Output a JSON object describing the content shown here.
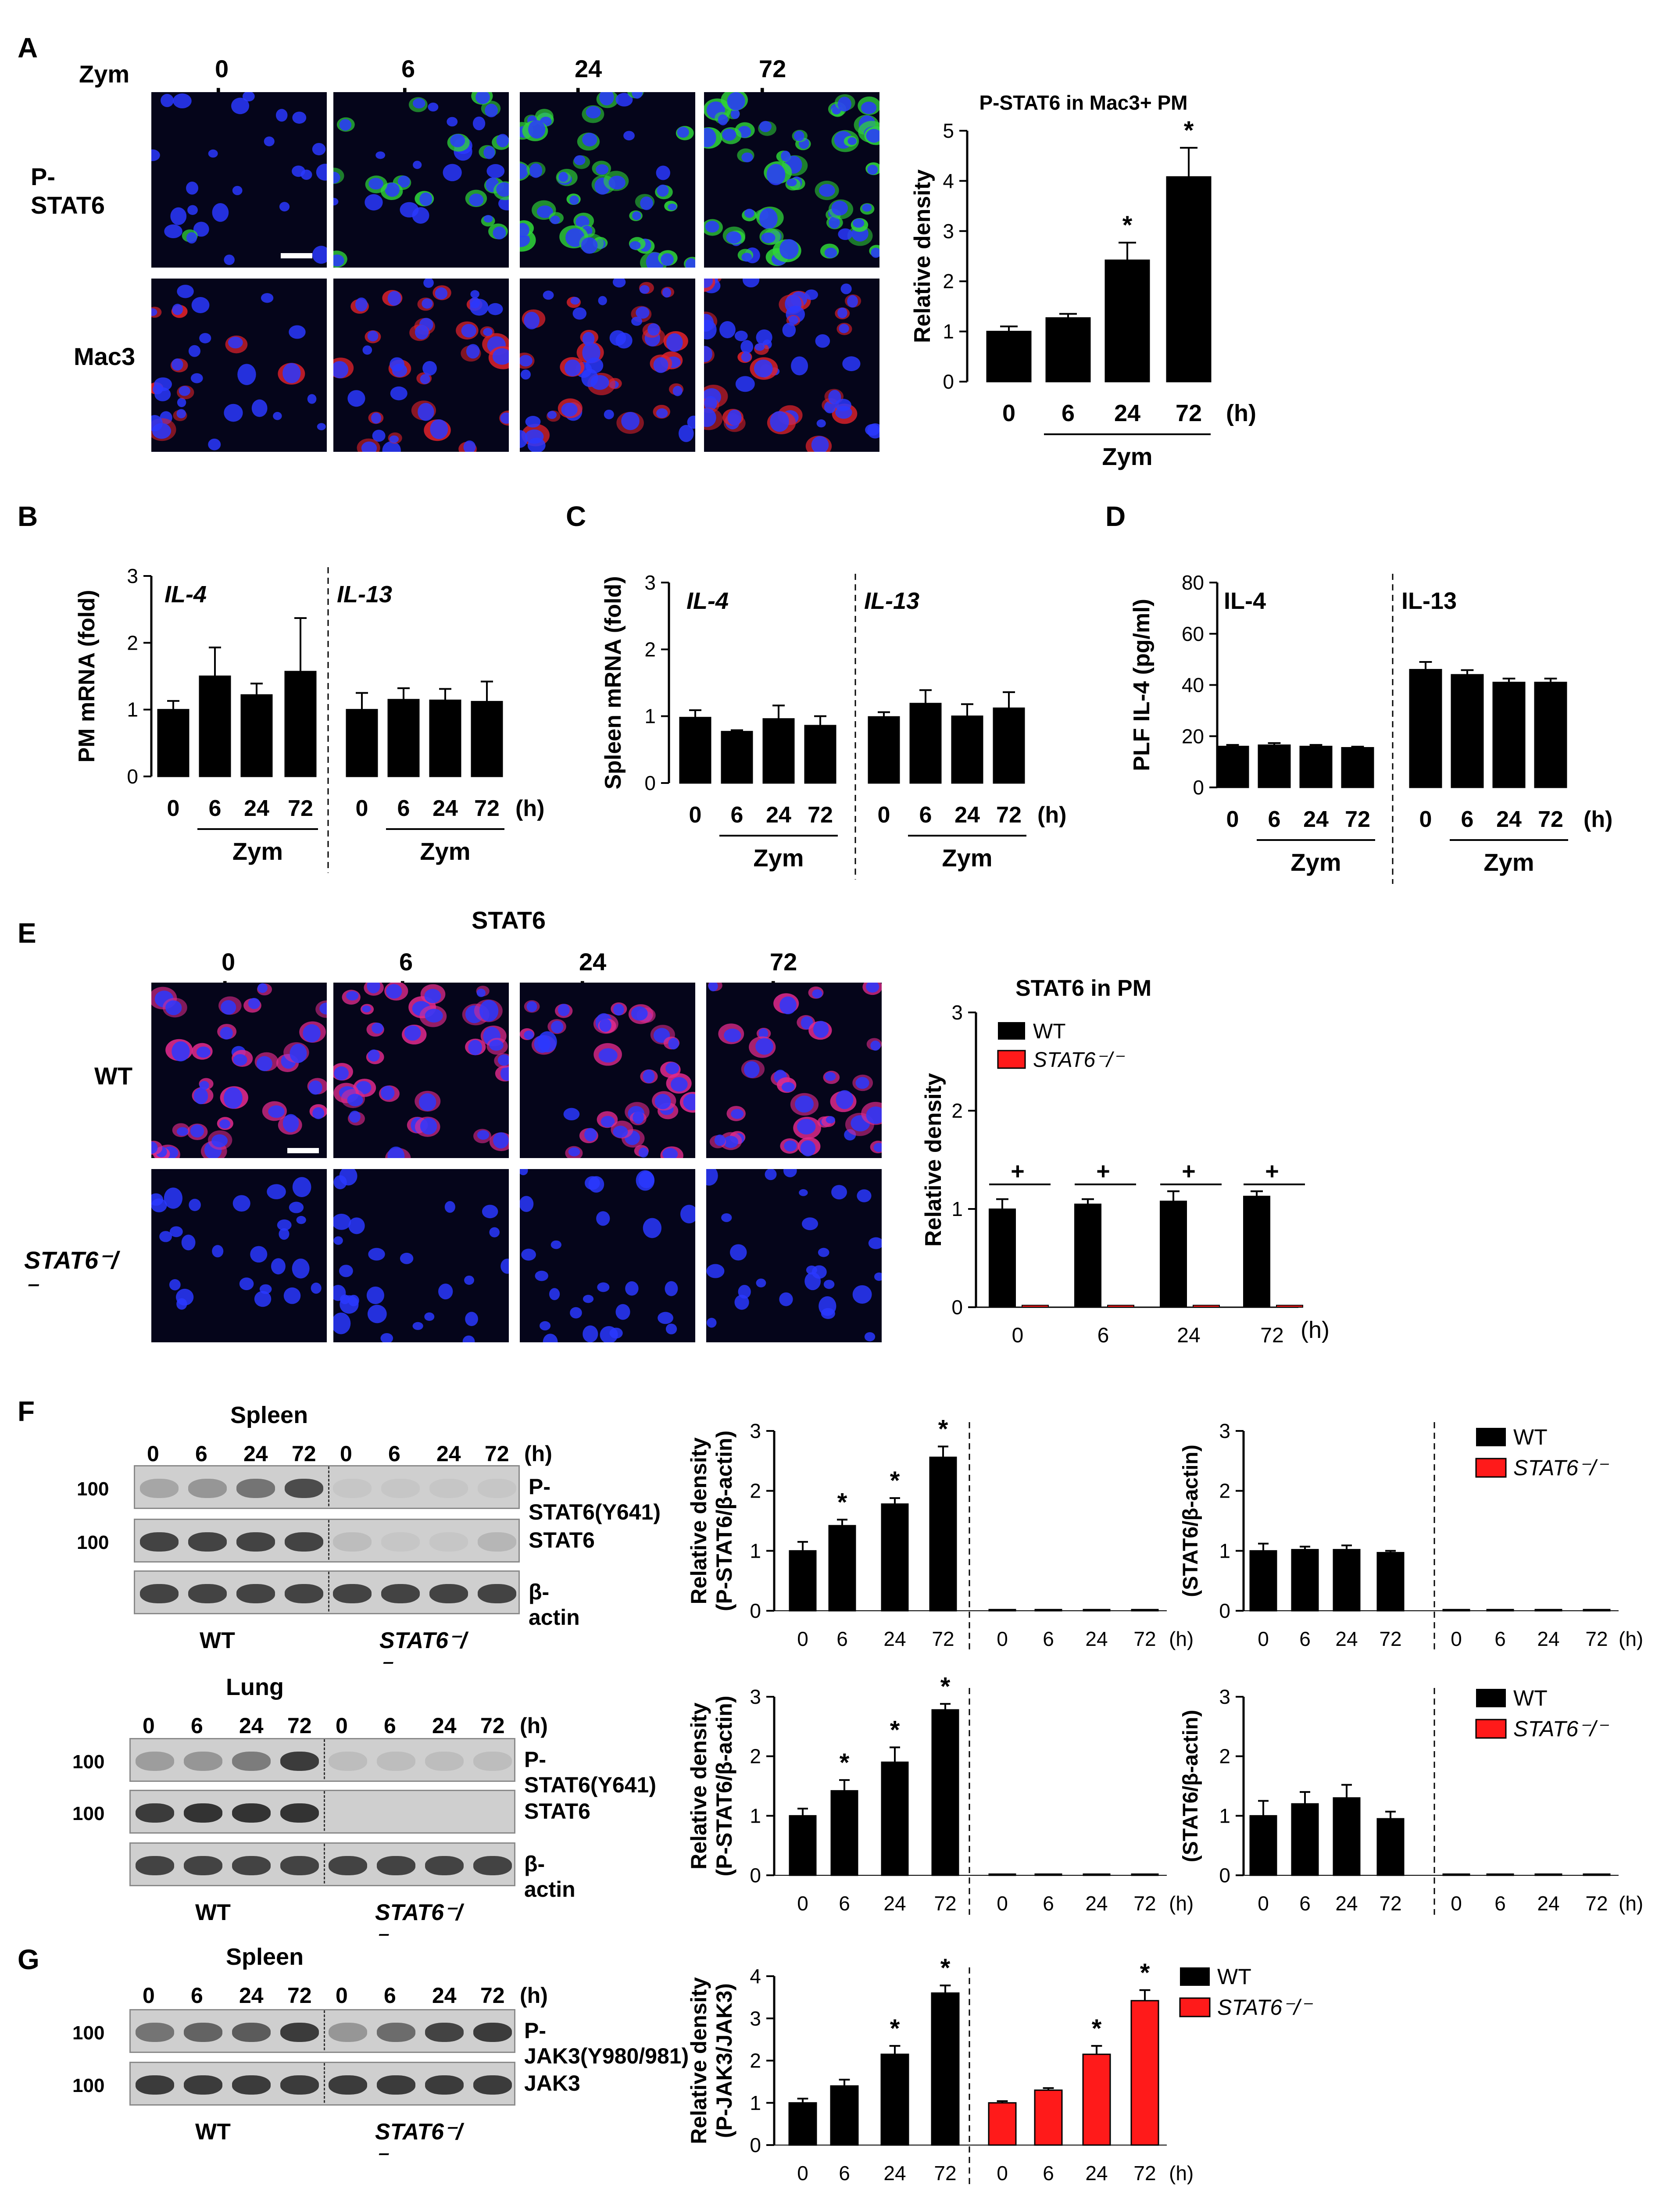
{
  "panels": {
    "A": {
      "letter": "A",
      "treatment": "Zym",
      "times": [
        "0 h",
        "6 h",
        "24 h",
        "72 h"
      ],
      "rows": [
        "P-STAT6",
        "Mac3"
      ],
      "colors": {
        "pstat6": "#2fd43a",
        "mac3": "#e0222b",
        "nuclei": "#2a38ff"
      }
    },
    "E": {
      "letter": "E",
      "title": "STAT6",
      "times": [
        "0 h",
        "6 h",
        "24 h",
        "72 h"
      ],
      "rows": [
        "WT",
        "STAT6⁻/⁻"
      ],
      "colors": {
        "stat6": "#e02a8c",
        "nuclei": "#2a38ff"
      }
    },
    "F": {
      "letter": "F",
      "blots": [
        {
          "tissue": "Spleen",
          "times": [
            "0",
            "6",
            "24",
            "72",
            "0",
            "6",
            "24",
            "72"
          ],
          "unit": "(h)",
          "markers": [
            "100",
            "100"
          ],
          "labels": [
            "P-STAT6(Y641)",
            "STAT6",
            "β-actin"
          ],
          "groups": [
            "WT",
            "STAT6⁻/⁻"
          ]
        },
        {
          "tissue": "Lung",
          "times": [
            "0",
            "6",
            "24",
            "72",
            "0",
            "6",
            "24",
            "72"
          ],
          "unit": "(h)",
          "markers": [
            "100",
            "100"
          ],
          "labels": [
            "P-STAT6(Y641)",
            "STAT6",
            "β-actin"
          ],
          "groups": [
            "WT",
            "STAT6⁻/⁻"
          ]
        }
      ]
    },
    "G": {
      "letter": "G",
      "blot": {
        "tissue": "Spleen",
        "times": [
          "0",
          "6",
          "24",
          "72",
          "0",
          "6",
          "24",
          "72"
        ],
        "unit": "(h)",
        "markers": [
          "100",
          "100"
        ],
        "labels": [
          "P-JAK3(Y980/981)",
          "JAK3"
        ],
        "groups": [
          "WT",
          "STAT6⁻/⁻"
        ]
      }
    },
    "B": {
      "letter": "B"
    },
    "C": {
      "letter": "C"
    },
    "D": {
      "letter": "D"
    }
  },
  "chart_data": [
    {
      "id": "A",
      "type": "bar",
      "title": "P-STAT6  in Mac3+ PM",
      "ylabel": "Relative density",
      "ylim": [
        0,
        5
      ],
      "yticks": [
        "0",
        "1",
        "2",
        "3",
        "4",
        "5"
      ],
      "categories": [
        "0",
        "6",
        "24",
        "72"
      ],
      "unit": "(h)",
      "treatment": "Zym",
      "values": [
        1.0,
        1.27,
        2.42,
        4.08
      ],
      "errors": [
        0.1,
        0.08,
        0.35,
        0.58
      ],
      "significance": [
        "",
        "",
        "*",
        "*"
      ],
      "colors": [
        "#000000"
      ]
    },
    {
      "id": "B",
      "type": "bar",
      "ylabel": "PM mRNA (fold)",
      "ylim": [
        0,
        3
      ],
      "yticks": [
        "0",
        "1",
        "2",
        "3"
      ],
      "unit": "(h)",
      "treatment": "Zym",
      "groups": [
        "IL-4",
        "IL-13"
      ],
      "categories": [
        "0",
        "6",
        "24",
        "72",
        "0",
        "6",
        "24",
        "72"
      ],
      "values": [
        1.0,
        1.5,
        1.22,
        1.57,
        1.0,
        1.15,
        1.14,
        1.12
      ],
      "errors": [
        0.13,
        0.43,
        0.17,
        0.8,
        0.25,
        0.17,
        0.17,
        0.3
      ]
    },
    {
      "id": "C",
      "type": "bar",
      "ylabel": "Spleen mRNA (fold)",
      "ylim": [
        0,
        3
      ],
      "yticks": [
        "0",
        "1",
        "2",
        "3"
      ],
      "unit": "(h)",
      "treatment": "Zym",
      "groups": [
        "IL-4",
        "IL-13"
      ],
      "categories": [
        "0",
        "6",
        "24",
        "72",
        "0",
        "6",
        "24",
        "72"
      ],
      "values": [
        0.98,
        0.77,
        0.96,
        0.86,
        0.99,
        1.19,
        1.0,
        1.12
      ],
      "errors": [
        0.11,
        0.02,
        0.2,
        0.14,
        0.07,
        0.2,
        0.18,
        0.24
      ]
    },
    {
      "id": "D",
      "type": "bar",
      "ylabel": "PLF IL-4 (pg/ml)",
      "ylim": [
        0,
        80
      ],
      "yticks": [
        "0",
        "20",
        "40",
        "60",
        "80"
      ],
      "unit": "(h)",
      "treatment": "Zym",
      "groups": [
        "IL-4",
        "IL-13"
      ],
      "categories": [
        "0",
        "6",
        "24",
        "72",
        "0",
        "6",
        "24",
        "72"
      ],
      "values": [
        16,
        16.5,
        16,
        15.5,
        46,
        44,
        41,
        41
      ],
      "errors": [
        0.6,
        0.8,
        0.6,
        0.4,
        3,
        1.8,
        1.5,
        1.5
      ]
    },
    {
      "id": "E",
      "type": "bar",
      "title": "STAT6 in  PM",
      "ylabel": "Relative density",
      "ylim": [
        0,
        3
      ],
      "yticks": [
        "0",
        "1",
        "2",
        "3"
      ],
      "unit": "(h)",
      "categories": [
        "0",
        "6",
        "24",
        "72"
      ],
      "series": [
        {
          "name": "WT",
          "values": [
            1.0,
            1.05,
            1.08,
            1.13
          ],
          "errors": [
            0.1,
            0.05,
            0.1,
            0.05
          ],
          "color": "#000000"
        },
        {
          "name": "STAT6⁻/⁻",
          "values": [
            0.02,
            0.02,
            0.02,
            0.02
          ],
          "errors": [
            0,
            0,
            0,
            0
          ],
          "color": "#ff1a1a"
        }
      ],
      "significance": [
        "+",
        "+",
        "+",
        "+"
      ],
      "legend": "top-left"
    },
    {
      "id": "F1",
      "type": "bar",
      "ylabel": "Relative density",
      "ylabel2": "(P-STAT6/β-actin)",
      "ylim": [
        0,
        3
      ],
      "yticks": [
        "0",
        "1",
        "2",
        "3"
      ],
      "unit": "(h)",
      "categories": [
        "0",
        "6",
        "24",
        "72",
        "0",
        "6",
        "24",
        "72"
      ],
      "values": [
        1.0,
        1.42,
        1.78,
        2.56,
        0.02,
        0.02,
        0.02,
        0.02
      ],
      "errors": [
        0.15,
        0.1,
        0.1,
        0.18,
        0,
        0,
        0,
        0
      ],
      "significance": [
        "",
        "*",
        "*",
        "*",
        "",
        "",
        "",
        ""
      ]
    },
    {
      "id": "F2",
      "type": "bar",
      "ylabel": "(STAT6/β-actin)",
      "ylim": [
        0,
        3
      ],
      "yticks": [
        "0",
        "1",
        "2",
        "3"
      ],
      "unit": "(h)",
      "categories": [
        "0",
        "6",
        "24",
        "72",
        "0",
        "6",
        "24",
        "72"
      ],
      "values": [
        1.0,
        1.02,
        1.02,
        0.97,
        0.02,
        0.02,
        0.02,
        0.02
      ],
      "errors": [
        0.12,
        0.05,
        0.07,
        0.03,
        0,
        0,
        0,
        0
      ],
      "legend": [
        "WT",
        "STAT6⁻/⁻"
      ],
      "colors": [
        "#000000",
        "#ff1a1a"
      ]
    },
    {
      "id": "F3",
      "type": "bar",
      "ylabel": "Relative density",
      "ylabel2": "(P-STAT6/β-actin)",
      "ylim": [
        0,
        3
      ],
      "yticks": [
        "0",
        "1",
        "2",
        "3"
      ],
      "unit": "(h)",
      "categories": [
        "0",
        "6",
        "24",
        "72",
        "0",
        "6",
        "24",
        "72"
      ],
      "values": [
        1.0,
        1.42,
        1.9,
        2.78,
        0.02,
        0.02,
        0.02,
        0.02
      ],
      "errors": [
        0.12,
        0.18,
        0.25,
        0.1,
        0,
        0,
        0,
        0
      ],
      "significance": [
        "",
        "*",
        "*",
        "*",
        "",
        "",
        "",
        ""
      ]
    },
    {
      "id": "F4",
      "type": "bar",
      "ylabel": "(STAT6/β-actin)",
      "ylim": [
        0,
        3
      ],
      "yticks": [
        "0",
        "1",
        "2",
        "3"
      ],
      "unit": "(h)",
      "categories": [
        "0",
        "6",
        "24",
        "72",
        "0",
        "6",
        "24",
        "72"
      ],
      "values": [
        1.0,
        1.2,
        1.3,
        0.95,
        0.02,
        0.02,
        0.02,
        0.02
      ],
      "errors": [
        0.25,
        0.2,
        0.22,
        0.12,
        0,
        0,
        0,
        0
      ],
      "legend": [
        "WT",
        "STAT6⁻/⁻"
      ],
      "colors": [
        "#000000",
        "#ff1a1a"
      ]
    },
    {
      "id": "G",
      "type": "bar",
      "ylabel": "Relative density",
      "ylabel2": "(P-JAK3/JAK3)",
      "ylim": [
        0,
        4
      ],
      "yticks": [
        "0",
        "1",
        "2",
        "3",
        "4"
      ],
      "unit": "(h)",
      "categories": [
        "0",
        "6",
        "24",
        "72",
        "0",
        "6",
        "24",
        "72"
      ],
      "values": [
        1.0,
        1.4,
        2.15,
        3.6,
        1.0,
        1.3,
        2.15,
        3.42
      ],
      "errors": [
        0.1,
        0.15,
        0.2,
        0.18,
        0.04,
        0.05,
        0.2,
        0.25
      ],
      "significance": [
        "",
        "",
        "*",
        "*",
        "",
        "",
        "*",
        "*"
      ],
      "legend": [
        "WT",
        "STAT6⁻/⁻"
      ],
      "colors": [
        "#000000",
        "#ff1a1a"
      ]
    }
  ]
}
